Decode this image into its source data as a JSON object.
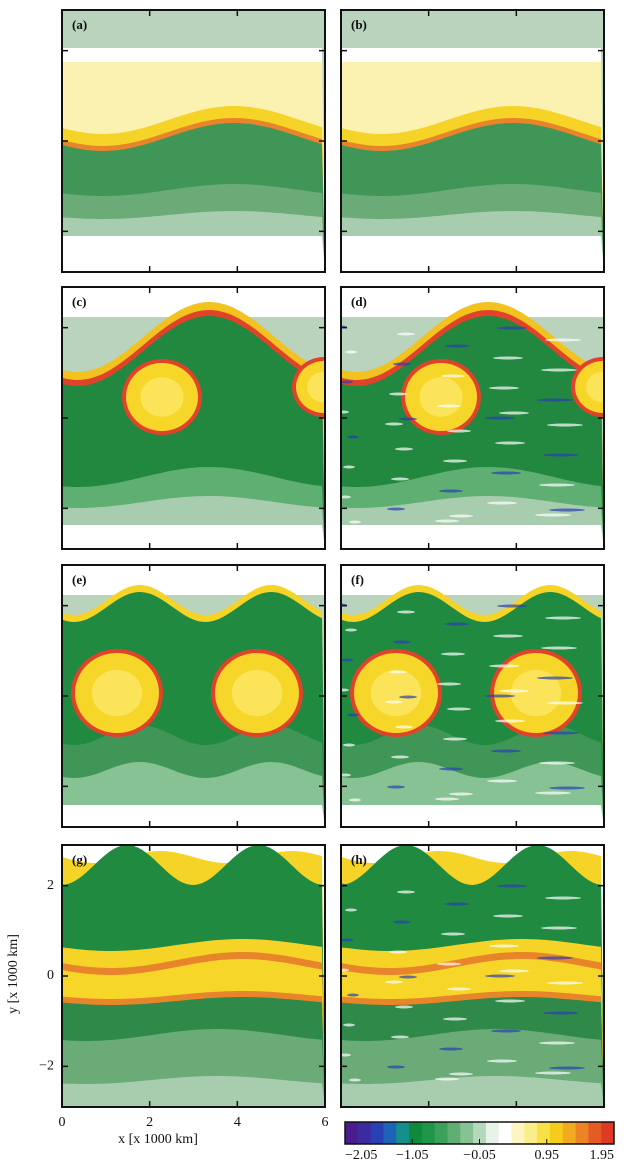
{
  "chart_data": {
    "type": "heatmap",
    "panels": [
      "(a)",
      "(b)",
      "(c)",
      "(d)",
      "(e)",
      "(f)",
      "(g)",
      "(h)"
    ],
    "x_label": "x [x 1000 km]",
    "y_label": "y [x 1000 km]",
    "xlim": [
      0,
      6
    ],
    "xticks": [
      0,
      2,
      4,
      6
    ],
    "ylim": [
      -2.9,
      2.9
    ],
    "yticks": [
      {
        "value": -2,
        "label": "−2"
      },
      0,
      2
    ],
    "colorbar": {
      "lim": [
        -2.05,
        1.95
      ],
      "ticks": [
        {
          "value": -2.05,
          "label": "−2.05"
        },
        {
          "value": -1.05,
          "label": "−1.05"
        },
        {
          "value": -0.05,
          "label": "−0.05"
        },
        0.95,
        1.95
      ],
      "colors": [
        "#4a1d8c",
        "#3b2aa0",
        "#2a3fb4",
        "#1d63b8",
        "#138f8c",
        "#0f8a3c",
        "#1f9647",
        "#3aa05a",
        "#5fae72",
        "#86c294",
        "#b3d8bb",
        "#e7f2e8",
        "#ffffff",
        "#fdf6c4",
        "#fbee8a",
        "#f8e045",
        "#f6cc1c",
        "#f2aa1f",
        "#ec8426",
        "#e65a26",
        "#de3a26"
      ]
    }
  }
}
